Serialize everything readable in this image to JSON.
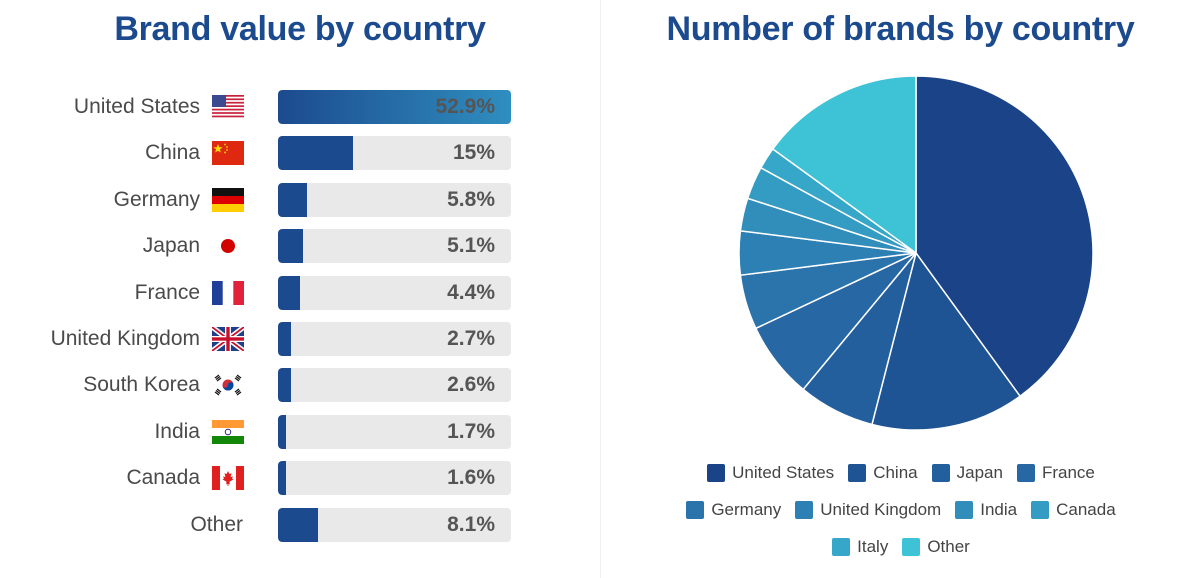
{
  "chart_data": [
    {
      "type": "bar",
      "title": "Brand value by country",
      "orientation": "horizontal",
      "unit": "%",
      "categories": [
        "United States",
        "China",
        "Germany",
        "Japan",
        "France",
        "United Kingdom",
        "South Korea",
        "India",
        "Canada",
        "Other"
      ],
      "values": [
        52.9,
        15,
        5.8,
        5.1,
        4.4,
        2.7,
        2.6,
        1.7,
        1.6,
        8.1
      ],
      "value_labels": [
        "52.9%",
        "15%",
        "5.8%",
        "5.1%",
        "4.4%",
        "2.7%",
        "2.6%",
        "1.7%",
        "1.6%",
        "8.1%"
      ],
      "xlim": [
        0,
        100
      ],
      "grid": false
    },
    {
      "type": "pie",
      "title": "Number of brands by country",
      "legend_position": "bottom",
      "categories": [
        "United States",
        "China",
        "Japan",
        "France",
        "Germany",
        "United Kingdom",
        "India",
        "Canada",
        "Italy",
        "Other"
      ],
      "values": [
        40,
        14,
        7,
        7,
        5,
        4,
        3,
        3,
        2,
        15
      ],
      "colors": [
        "#1b4388",
        "#1e5394",
        "#235f9d",
        "#2767a3",
        "#2a73ab",
        "#2d80b3",
        "#318dba",
        "#349bc2",
        "#36a6c9",
        "#3ec2d6"
      ]
    }
  ]
}
